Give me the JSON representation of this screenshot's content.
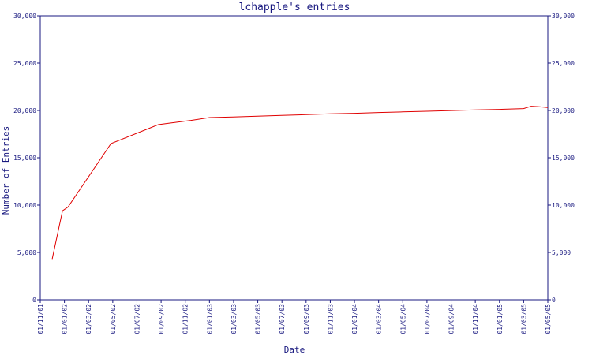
{
  "chart_data": {
    "type": "line",
    "title": "lchapple's entries",
    "xlabel": "Date",
    "ylabel": "Number of Entries",
    "ylim": [
      0,
      30000
    ],
    "yticks": [
      0,
      5000,
      10000,
      15000,
      20000,
      25000,
      30000
    ],
    "ytick_labels": [
      "0",
      "5,000",
      "10,000",
      "15,000",
      "20,000",
      "25,000",
      "30,000"
    ],
    "xlim": [
      "2001-11-01",
      "2005-05-01"
    ],
    "xtick_labels": [
      "01/11/01",
      "01/01/02",
      "01/03/02",
      "01/05/02",
      "01/07/02",
      "01/09/02",
      "01/11/02",
      "01/01/03",
      "01/03/03",
      "01/05/03",
      "01/07/03",
      "01/09/03",
      "01/11/03",
      "01/01/04",
      "01/03/04",
      "01/05/04",
      "01/07/04",
      "01/09/04",
      "01/11/04",
      "01/01/05",
      "01/03/05",
      "01/05/05"
    ],
    "grid": false,
    "colors": {
      "axis": "#1a1a80",
      "line": "#e00000",
      "text": "#1a1a80"
    },
    "series": [
      {
        "x": [
          "2001-12-01",
          "2001-12-27",
          "2002-01-10",
          "2002-04-28",
          "2002-08-25",
          "2002-09-20",
          "2002-11-15",
          "2003-01-01",
          "2003-03-01",
          "2003-05-01",
          "2003-07-01",
          "2003-09-01",
          "2003-11-01",
          "2004-01-01",
          "2004-03-01",
          "2004-05-01",
          "2004-07-01",
          "2004-09-01",
          "2004-11-01",
          "2005-01-01",
          "2005-03-01",
          "2005-03-20",
          "2005-04-10",
          "2005-05-01"
        ],
        "values": [
          4300,
          9400,
          9800,
          16500,
          18500,
          18650,
          18950,
          19250,
          19320,
          19400,
          19480,
          19560,
          19640,
          19700,
          19780,
          19850,
          19920,
          19990,
          20060,
          20120,
          20200,
          20450,
          20400,
          20320
        ]
      }
    ]
  }
}
